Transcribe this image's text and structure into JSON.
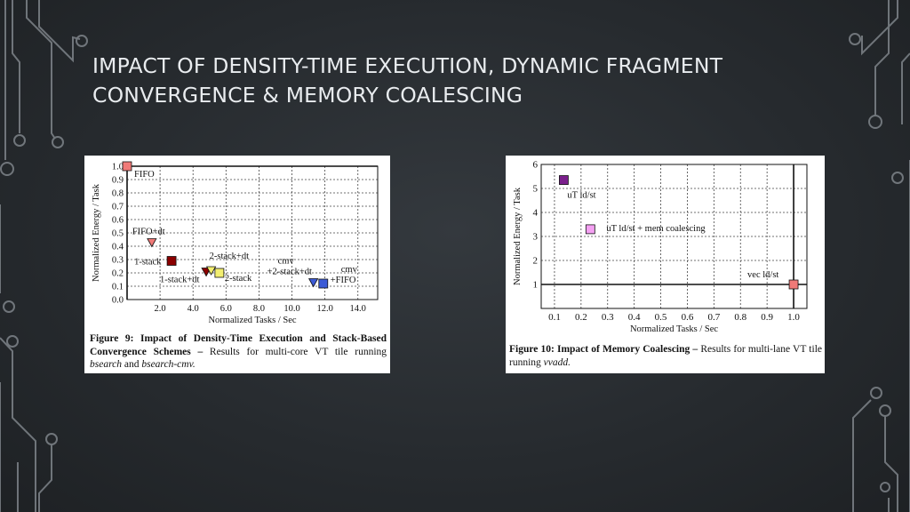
{
  "slide": {
    "title_line1": "IMPACT OF DENSITY-TIME EXECUTION, DYNAMIC FRAGMENT",
    "title_line2": "CONVERGENCE & MEMORY COALESCING"
  },
  "colors": {
    "background": "#2a2e32",
    "decoration": "#8a9096",
    "title": "#e9ecef"
  },
  "chart_data": [
    {
      "type": "scatter",
      "xlabel": "Normalized Tasks / Sec",
      "ylabel": "Normalized Energy / Task",
      "xlim": [
        0,
        15.2
      ],
      "ylim": [
        0,
        1.0
      ],
      "x_ticks": [
        2.0,
        4.0,
        6.0,
        8.0,
        10.0,
        12.0,
        14.0
      ],
      "x_tick_labels": [
        "2.0",
        "4.0",
        "6.0",
        "8.0",
        "10.0",
        "12.0",
        "14.0"
      ],
      "y_ticks": [
        0.0,
        0.1,
        0.2,
        0.3,
        0.4,
        0.5,
        0.6,
        0.7,
        0.8,
        0.9,
        1.0
      ],
      "y_tick_labels": [
        "0.0",
        "0.1",
        "0.2",
        "0.3",
        "0.4",
        "0.5",
        "0.6",
        "0.7",
        "0.8",
        "0.9",
        "1.0"
      ],
      "grid": true,
      "points": [
        {
          "label": "FIFO",
          "x": 0.0,
          "y": 1.0,
          "marker": "square",
          "color": "#f07a78"
        },
        {
          "label": "FIFO+dt",
          "x": 1.5,
          "y": 0.43,
          "marker": "triangle",
          "color": "#f07a78"
        },
        {
          "label": "1-stack",
          "x": 2.7,
          "y": 0.29,
          "marker": "square",
          "color": "#8b0000"
        },
        {
          "label": "1-stack+dt",
          "x": 4.8,
          "y": 0.21,
          "marker": "triangle",
          "color": "#8b0000"
        },
        {
          "label": "2-stack+dt",
          "x": 5.1,
          "y": 0.22,
          "marker": "triangle",
          "color": "#f2ee70"
        },
        {
          "label": "2-stack",
          "x": 5.6,
          "y": 0.2,
          "marker": "square",
          "color": "#f2ee70"
        },
        {
          "label": "cmv +2-stack+dt",
          "x": 11.3,
          "y": 0.13,
          "marker": "triangle",
          "color": "#3c5bd6"
        },
        {
          "label": "cmv +FIFO",
          "x": 11.9,
          "y": 0.12,
          "marker": "square",
          "color": "#3c5bd6"
        }
      ],
      "caption": {
        "label": "Figure 9:",
        "bold_text": "Impact of Density-Time Execution and Stack-Based Convergence Schemes –",
        "text": "Results for multi-core VT tile running",
        "code1": "bsearch",
        "and": "and",
        "code2": "bsearch-cmv."
      }
    },
    {
      "type": "scatter",
      "xlabel": "Normalized Tasks / Sec",
      "ylabel": "Normalized Energy / Task",
      "xlim": [
        0.05,
        1.05
      ],
      "ylim": [
        0,
        6
      ],
      "x_ticks": [
        0.1,
        0.2,
        0.3,
        0.4,
        0.5,
        0.6,
        0.7,
        0.8,
        0.9,
        1.0
      ],
      "x_tick_labels": [
        "0.1",
        "0.2",
        "0.3",
        "0.4",
        "0.5",
        "0.6",
        "0.7",
        "0.8",
        "0.9",
        "1.0"
      ],
      "y_ticks": [
        1,
        2,
        3,
        4,
        5,
        6
      ],
      "y_tick_labels": [
        "1",
        "2",
        "3",
        "4",
        "5",
        "6"
      ],
      "grid": true,
      "points": [
        {
          "label": "uT ld/st",
          "x": 0.135,
          "y": 5.35,
          "marker": "square",
          "color": "#7b1f8c"
        },
        {
          "label": "uT ld/st + mem coalescing",
          "x": 0.235,
          "y": 3.3,
          "marker": "square",
          "color": "#f4a0f2"
        },
        {
          "label": "vec ld/st",
          "x": 1.0,
          "y": 1.0,
          "marker": "square",
          "color": "#f07a78"
        }
      ],
      "caption": {
        "label": "Figure 10:",
        "bold_text": "Impact of Memory Coalescing –",
        "text": "Results for multi-lane VT tile running",
        "code1": "vvadd."
      }
    }
  ]
}
